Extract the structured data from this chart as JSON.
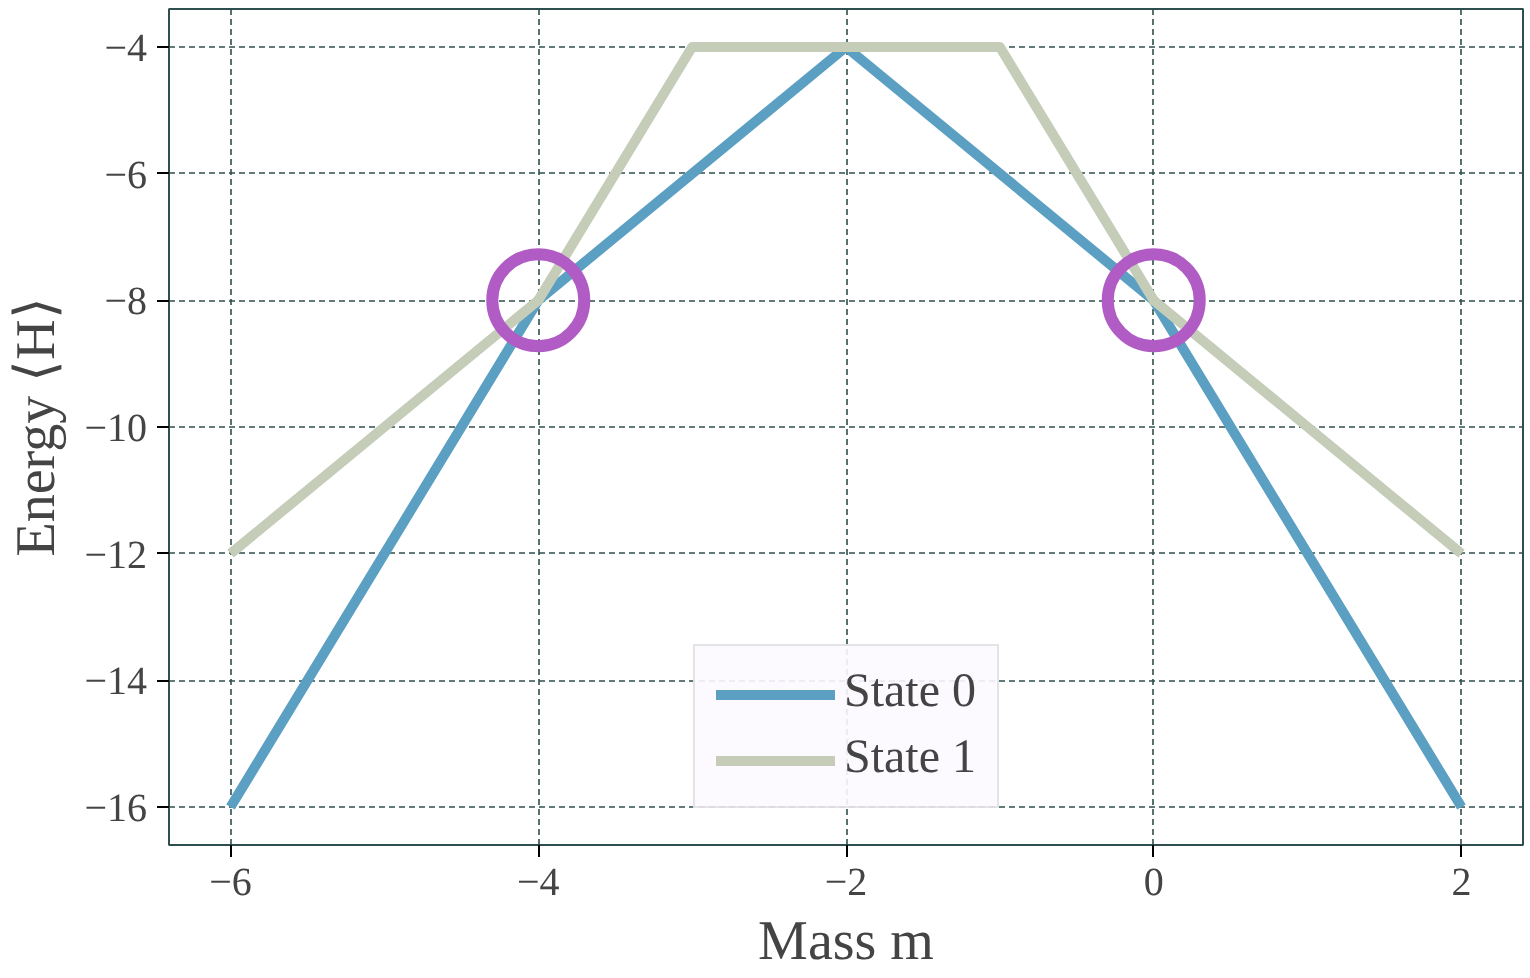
{
  "chart_data": {
    "type": "line",
    "xlabel": "Mass m",
    "ylabel": "Energy ⟨H⟩",
    "xlim": [
      -6.4,
      2.4
    ],
    "ylim": [
      -16.6,
      -3.4
    ],
    "xticks": [
      {
        "value": -6,
        "label": "−6"
      },
      {
        "value": -4,
        "label": "−4"
      },
      {
        "value": -2,
        "label": "−2"
      },
      0,
      2
    ],
    "yticks": [
      {
        "value": -16,
        "label": "−16"
      },
      {
        "value": -14,
        "label": "−14"
      },
      {
        "value": -12,
        "label": "−12"
      },
      {
        "value": -10,
        "label": "−10"
      },
      {
        "value": -8,
        "label": "−8"
      },
      {
        "value": -6,
        "label": "−6"
      },
      {
        "value": -4,
        "label": "−4"
      }
    ],
    "grid": true,
    "legend": "bottom",
    "marker": "none",
    "series": [
      {
        "name": "State 0",
        "color": "#5b9fc2",
        "x": [
          -6,
          -4,
          -2,
          0,
          2
        ],
        "values": [
          -16,
          -8,
          -4,
          -8,
          -16
        ]
      },
      {
        "name": "State 1",
        "color": "#c5cdb9",
        "x": [
          -6,
          -5,
          -4,
          -3,
          -2,
          -1,
          0,
          1,
          2
        ],
        "values": [
          -12,
          -10,
          -8,
          -4,
          -4,
          -4,
          -8,
          -10,
          -12
        ]
      },
      {
        "type": "scatter",
        "marker": "circle",
        "color": "#b05cc4",
        "x": [
          -4,
          0
        ],
        "values": [
          -8,
          -8
        ]
      }
    ]
  }
}
